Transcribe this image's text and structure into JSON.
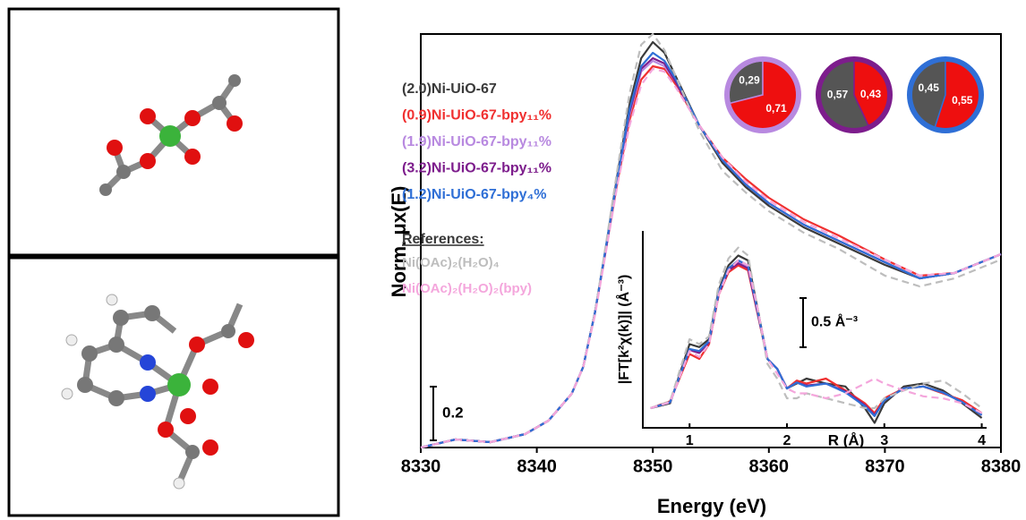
{
  "chart_data": {
    "type": "line",
    "x_label": "Energy (eV)",
    "y_label": "Norm. μx(E)",
    "x": [
      8330,
      8333,
      8336,
      8339,
      8341,
      8343,
      8344,
      8345,
      8346,
      8347,
      8348,
      8349,
      8350,
      8351,
      8352,
      8354,
      8356,
      8358,
      8360,
      8363,
      8366,
      8370,
      8373,
      8376,
      8380
    ],
    "xlim": [
      8330,
      8380
    ],
    "xticks": [
      8330,
      8340,
      8350,
      8360,
      8370,
      8380
    ],
    "ylim": [
      0,
      1.54
    ],
    "scale_bar": 0.2,
    "legend_title": "References:",
    "series": [
      {
        "name": "(2.0)Ni-UiO-67",
        "color": "#3a3a3a",
        "dashed": false,
        "values": [
          0,
          0.03,
          0.02,
          0.05,
          0.1,
          0.2,
          0.3,
          0.5,
          0.76,
          1.03,
          1.28,
          1.45,
          1.51,
          1.47,
          1.38,
          1.2,
          1.06,
          0.97,
          0.9,
          0.82,
          0.76,
          0.68,
          0.63,
          0.65,
          0.72
        ]
      },
      {
        "name": "(0.9)Ni-UiO-67-bpy₁₁%",
        "color": "#f03030",
        "dashed": false,
        "values": [
          0,
          0.03,
          0.02,
          0.05,
          0.1,
          0.2,
          0.3,
          0.5,
          0.75,
          1.0,
          1.22,
          1.37,
          1.42,
          1.41,
          1.35,
          1.2,
          1.08,
          1.0,
          0.93,
          0.85,
          0.79,
          0.7,
          0.64,
          0.65,
          0.72
        ]
      },
      {
        "name": "(1.9)Ni-UiO-67-bpy₁₁%",
        "color": "#b889e0",
        "dashed": false,
        "values": [
          0,
          0.03,
          0.02,
          0.05,
          0.1,
          0.2,
          0.3,
          0.5,
          0.75,
          1.01,
          1.24,
          1.4,
          1.44,
          1.42,
          1.36,
          1.2,
          1.07,
          0.98,
          0.91,
          0.83,
          0.77,
          0.69,
          0.63,
          0.65,
          0.72
        ]
      },
      {
        "name": "(3.2)Ni-UiO-67-bpy₁₁%",
        "color": "#7d1d8c",
        "dashed": false,
        "values": [
          0,
          0.03,
          0.02,
          0.05,
          0.1,
          0.2,
          0.3,
          0.5,
          0.75,
          1.02,
          1.25,
          1.41,
          1.45,
          1.43,
          1.36,
          1.2,
          1.07,
          0.98,
          0.91,
          0.83,
          0.77,
          0.69,
          0.63,
          0.65,
          0.72
        ]
      },
      {
        "name": "(1.2)Ni-UiO-67-bpy₄%",
        "color": "#2f6fd6",
        "dashed": false,
        "values": [
          0,
          0.03,
          0.02,
          0.05,
          0.1,
          0.2,
          0.3,
          0.5,
          0.76,
          1.02,
          1.26,
          1.42,
          1.47,
          1.44,
          1.37,
          1.2,
          1.07,
          0.98,
          0.91,
          0.83,
          0.77,
          0.69,
          0.63,
          0.65,
          0.72
        ]
      },
      {
        "name": "Ni(OAc)₂(H₂O)₄",
        "color": "#bdbdbd",
        "dashed": true,
        "values": [
          0,
          0.03,
          0.02,
          0.05,
          0.1,
          0.2,
          0.3,
          0.5,
          0.77,
          1.05,
          1.32,
          1.5,
          1.54,
          1.48,
          1.38,
          1.18,
          1.03,
          0.95,
          0.88,
          0.8,
          0.74,
          0.64,
          0.6,
          0.63,
          0.7
        ]
      },
      {
        "name": "Ni(OAc)₂(H₂O)₂(bpy)",
        "color": "#f4a6dc",
        "dashed": true,
        "values": [
          0,
          0.03,
          0.02,
          0.05,
          0.1,
          0.2,
          0.3,
          0.49,
          0.74,
          0.99,
          1.2,
          1.35,
          1.41,
          1.4,
          1.34,
          1.2,
          1.08,
          0.99,
          0.92,
          0.84,
          0.78,
          0.7,
          0.64,
          0.65,
          0.72
        ]
      }
    ],
    "inset": {
      "type": "line",
      "x_label": "R (Å)",
      "y_label": "|FT[k²χ(k)]| (Å⁻³)",
      "x": [
        0.6,
        0.8,
        1.0,
        1.1,
        1.2,
        1.3,
        1.4,
        1.5,
        1.6,
        1.7,
        1.8,
        1.9,
        2.0,
        2.1,
        2.2,
        2.4,
        2.6,
        2.8,
        2.9,
        3.0,
        3.2,
        3.4,
        3.6,
        3.8,
        4.0
      ],
      "xlim": [
        0.52,
        4.05
      ],
      "xticks": [
        1,
        2,
        3,
        4
      ],
      "ylim": [
        0,
        2
      ],
      "scale_bar": {
        "value": 0.5,
        "label": "0.5 Å⁻³"
      },
      "series": [
        {
          "color": "#3a3a3a",
          "dashed": false,
          "values": [
            0.2,
            0.25,
            0.85,
            0.82,
            0.9,
            1.4,
            1.65,
            1.75,
            1.7,
            1.2,
            0.7,
            0.6,
            0.4,
            0.45,
            0.5,
            0.45,
            0.42,
            0.2,
            0.05,
            0.25,
            0.42,
            0.45,
            0.38,
            0.25,
            0.1
          ]
        },
        {
          "color": "#f03030",
          "dashed": false,
          "values": [
            0.2,
            0.27,
            0.75,
            0.7,
            0.85,
            1.35,
            1.58,
            1.65,
            1.6,
            1.15,
            0.7,
            0.6,
            0.4,
            0.48,
            0.45,
            0.5,
            0.38,
            0.25,
            0.15,
            0.3,
            0.4,
            0.42,
            0.35,
            0.28,
            0.15
          ]
        },
        {
          "color": "#b889e0",
          "dashed": false,
          "values": [
            0.2,
            0.26,
            0.8,
            0.77,
            0.88,
            1.37,
            1.6,
            1.68,
            1.63,
            1.17,
            0.7,
            0.6,
            0.4,
            0.46,
            0.42,
            0.45,
            0.36,
            0.22,
            0.12,
            0.28,
            0.4,
            0.42,
            0.36,
            0.26,
            0.13
          ]
        },
        {
          "color": "#7d1d8c",
          "dashed": false,
          "values": [
            0.2,
            0.26,
            0.79,
            0.76,
            0.87,
            1.36,
            1.6,
            1.67,
            1.62,
            1.16,
            0.7,
            0.6,
            0.4,
            0.46,
            0.43,
            0.45,
            0.37,
            0.23,
            0.13,
            0.28,
            0.4,
            0.42,
            0.36,
            0.26,
            0.13
          ]
        },
        {
          "color": "#2f6fd6",
          "dashed": false,
          "values": [
            0.2,
            0.26,
            0.8,
            0.78,
            0.88,
            1.38,
            1.62,
            1.7,
            1.65,
            1.18,
            0.7,
            0.6,
            0.4,
            0.46,
            0.42,
            0.45,
            0.36,
            0.22,
            0.12,
            0.28,
            0.4,
            0.42,
            0.36,
            0.26,
            0.13
          ]
        },
        {
          "color": "#bdbdbd",
          "dashed": true,
          "values": [
            0.2,
            0.27,
            0.9,
            0.85,
            0.93,
            1.45,
            1.72,
            1.83,
            1.75,
            1.2,
            0.65,
            0.5,
            0.3,
            0.3,
            0.35,
            0.3,
            0.25,
            0.2,
            0.2,
            0.3,
            0.38,
            0.45,
            0.48,
            0.35,
            0.2
          ]
        },
        {
          "color": "#f4a6dc",
          "dashed": true,
          "values": [
            0.2,
            0.26,
            0.78,
            0.72,
            0.85,
            1.35,
            1.6,
            1.7,
            1.65,
            1.2,
            0.7,
            0.55,
            0.4,
            0.35,
            0.35,
            0.3,
            0.35,
            0.45,
            0.5,
            0.45,
            0.38,
            0.32,
            0.3,
            0.25,
            0.15
          ]
        }
      ]
    },
    "pies": [
      {
        "values": [
          0.29,
          0.71
        ],
        "value_labels": [
          "0,29",
          "0,71"
        ],
        "colors": [
          "#555555",
          "#ee0f0f"
        ],
        "ring_color": "#b889e0"
      },
      {
        "values": [
          0.57,
          0.43
        ],
        "value_labels": [
          "0,57",
          "0,43"
        ],
        "colors": [
          "#555555",
          "#ee0f0f"
        ],
        "ring_color": "#7d1d8c"
      },
      {
        "values": [
          0.45,
          0.55
        ],
        "value_labels": [
          "0,45",
          "0,55"
        ],
        "colors": [
          "#555555",
          "#ee0f0f"
        ],
        "ring_color": "#2f6fd6"
      }
    ]
  }
}
